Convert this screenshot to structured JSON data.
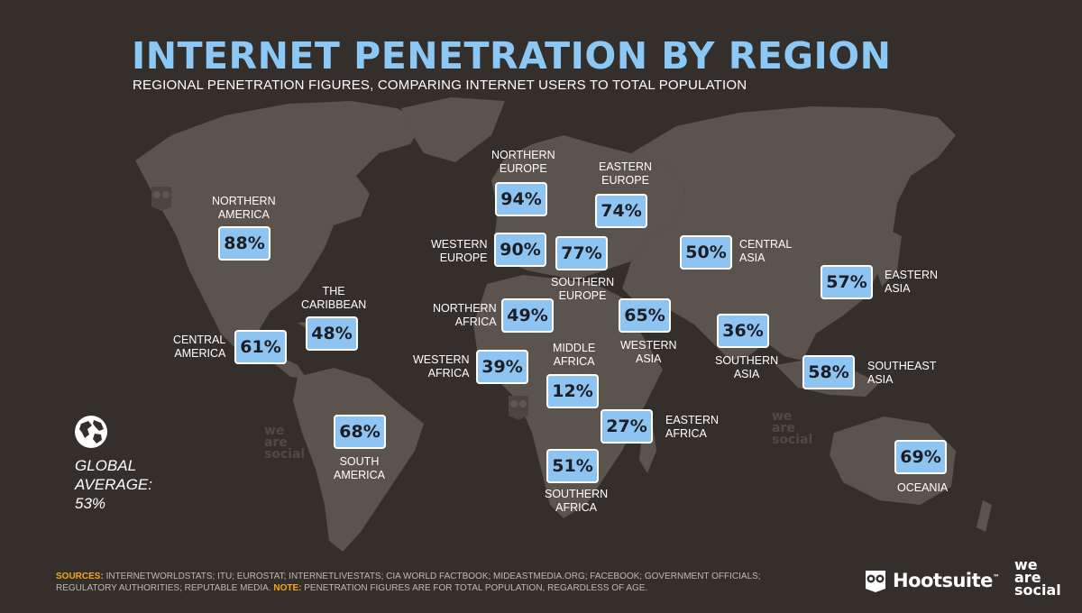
{
  "title": "INTERNET PENETRATION BY REGION",
  "subtitle": "REGIONAL PENETRATION FIGURES, COMPARING INTERNET USERS TO TOTAL POPULATION",
  "colors": {
    "background": "#352f2b",
    "land": "#5a534e",
    "title": "#8cc8f5",
    "badge": "#8ec4f2",
    "sources_highlight": "#f3a81e"
  },
  "regions": {
    "northern_america": {
      "label": "NORTHERN\nAMERICA",
      "value": "88%"
    },
    "central_america": {
      "label": "CENTRAL\nAMERICA",
      "value": "61%"
    },
    "caribbean": {
      "label": "THE\nCARIBBEAN",
      "value": "48%"
    },
    "south_america": {
      "label": "SOUTH\nAMERICA",
      "value": "68%"
    },
    "northern_europe": {
      "label": "NORTHERN\nEUROPE",
      "value": "94%"
    },
    "eastern_europe": {
      "label": "EASTERN\nEUROPE",
      "value": "74%"
    },
    "western_europe": {
      "label": "WESTERN\nEUROPE",
      "value": "90%"
    },
    "southern_europe": {
      "label": "SOUTHERN\nEUROPE",
      "value": "77%"
    },
    "northern_africa": {
      "label": "NORTHERN\nAFRICA",
      "value": "49%"
    },
    "western_africa": {
      "label": "WESTERN\nAFRICA",
      "value": "39%"
    },
    "middle_africa": {
      "label": "MIDDLE\nAFRICA",
      "value": "12%"
    },
    "eastern_africa": {
      "label": "EASTERN\nAFRICA",
      "value": "27%"
    },
    "southern_africa": {
      "label": "SOUTHERN\nAFRICA",
      "value": "51%"
    },
    "western_asia": {
      "label": "WESTERN\nASIA",
      "value": "65%"
    },
    "central_asia": {
      "label": "CENTRAL\nASIA",
      "value": "50%"
    },
    "southern_asia": {
      "label": "SOUTHERN\nASIA",
      "value": "36%"
    },
    "eastern_asia": {
      "label": "EASTERN\nASIA",
      "value": "57%"
    },
    "southeast_asia": {
      "label": "SOUTHEAST\nASIA",
      "value": "58%"
    },
    "oceania": {
      "label": "OCEANIA",
      "value": "69%"
    }
  },
  "global": {
    "label": "GLOBAL\nAVERAGE:",
    "value": "53%",
    "icon": "globe-icon"
  },
  "sources": {
    "label": "SOURCES:",
    "text": "INTERNETWORLDSTATS; ITU; EUROSTAT; INTERNETLIVESTATS; CIA WORLD FACTBOOK; MIDEASTMEDIA.ORG; FACEBOOK; GOVERNMENT OFFICIALS; REGULATORY AUTHORITIES; REPUTABLE MEDIA.",
    "note_label": "NOTE:",
    "note_text": "PENETRATION FIGURES ARE FOR TOTAL POPULATION, REGARDLESS OF AGE."
  },
  "logos": {
    "hootsuite": "Hootsuite",
    "hootsuite_tm": "™",
    "we_are_social": "we\nare\nsocial"
  },
  "watermarks": {
    "we_are_social": "we\nare\nsocial"
  }
}
